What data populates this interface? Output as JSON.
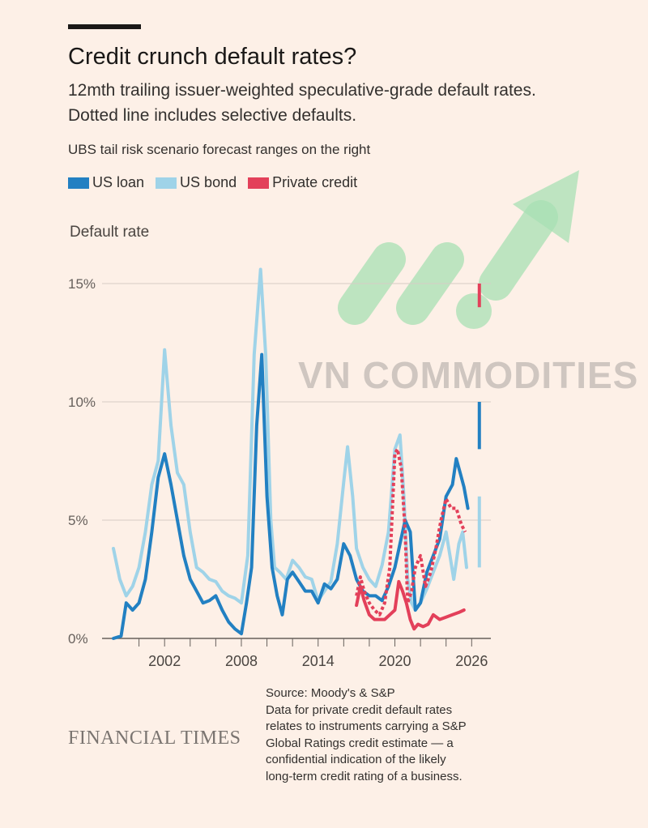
{
  "header": {
    "title": "Credit crunch default rates?",
    "subtitle": "12mth trailing issuer-weighted speculative-grade default rates. Dotted line includes selective defaults.",
    "note": "UBS tail risk scenario forecast ranges on the right"
  },
  "legend": [
    {
      "label": "US loan",
      "color": "#2280c2"
    },
    {
      "label": "US bond",
      "color": "#9fd3e8"
    },
    {
      "label": "Private credit",
      "color": "#e3405a"
    }
  ],
  "watermark": {
    "text": "VN COMMODITIES",
    "arrow_color": "#a8e0b4"
  },
  "footer": {
    "brand": "FINANCIAL TIMES",
    "source_lines": [
      "Source: Moody's & S&P",
      "Data for private credit default rates",
      "relates to instruments carrying a S&P",
      "Global Ratings credit estimate — a",
      "confidential indication of the likely",
      "long-term credit rating of a business."
    ]
  },
  "chart_data": {
    "type": "line",
    "title": "Credit crunch default rates?",
    "ylabel": "Default rate",
    "xlim": [
      1998.0,
      2027.5
    ],
    "ylim": [
      0,
      15
    ],
    "x_ticks": [
      2002,
      2008,
      2014,
      2020,
      2026
    ],
    "y_ticks": [
      0,
      5,
      10,
      15
    ],
    "y_tick_labels": [
      "0%",
      "5%",
      "10%",
      "15%"
    ],
    "grid": "horizontal",
    "series": [
      {
        "name": "US bond",
        "color": "#9fd3e8",
        "x": [
          1998.0,
          1998.5,
          1999.0,
          1999.5,
          2000.0,
          2000.5,
          2001.0,
          2001.5,
          2002.0,
          2002.5,
          2003.0,
          2003.5,
          2004.0,
          2004.5,
          2005.0,
          2005.5,
          2006.0,
          2006.5,
          2007.0,
          2007.5,
          2008.0,
          2008.5,
          2009.0,
          2009.5,
          2009.9,
          2010.3,
          2010.6,
          2011.0,
          2011.5,
          2012.0,
          2012.5,
          2013.0,
          2013.5,
          2014.0,
          2014.5,
          2015.0,
          2015.5,
          2016.0,
          2016.3,
          2016.7,
          2017.0,
          2017.5,
          2018.0,
          2018.5,
          2019.0,
          2019.5,
          2020.0,
          2020.4,
          2020.7,
          2021.0,
          2021.3,
          2021.6,
          2022.0,
          2022.5,
          2023.0,
          2023.5,
          2024.0,
          2024.3,
          2024.6,
          2025.0,
          2025.3,
          2025.6
        ],
        "values": [
          3.8,
          2.5,
          1.8,
          2.2,
          3.0,
          4.5,
          6.5,
          7.5,
          12.2,
          9.0,
          7.0,
          6.5,
          4.5,
          3.0,
          2.8,
          2.5,
          2.4,
          2.0,
          1.8,
          1.7,
          1.5,
          3.5,
          12.0,
          15.6,
          12.0,
          5.0,
          3.0,
          2.8,
          2.5,
          3.3,
          3.0,
          2.6,
          2.5,
          1.6,
          2.0,
          2.4,
          4.0,
          6.6,
          8.1,
          6.0,
          3.8,
          3.0,
          2.5,
          2.2,
          3.1,
          4.5,
          8.0,
          8.6,
          6.0,
          2.5,
          1.5,
          1.2,
          1.5,
          2.1,
          2.8,
          3.5,
          4.5,
          3.5,
          2.5,
          4.0,
          4.5,
          3.0
        ]
      },
      {
        "name": "US loan",
        "color": "#2280c2",
        "x": [
          1998.0,
          1998.6,
          1999.0,
          1999.5,
          2000.0,
          2000.5,
          2001.0,
          2001.5,
          2002.0,
          2002.5,
          2003.0,
          2003.5,
          2004.0,
          2004.5,
          2005.0,
          2005.5,
          2006.0,
          2006.5,
          2007.0,
          2007.5,
          2008.0,
          2008.4,
          2008.8,
          2009.2,
          2009.6,
          2010.0,
          2010.4,
          2010.8,
          2011.2,
          2011.6,
          2012.0,
          2012.5,
          2013.0,
          2013.5,
          2014.0,
          2014.5,
          2015.0,
          2015.5,
          2016.0,
          2016.5,
          2017.0,
          2017.5,
          2018.0,
          2018.5,
          2019.0,
          2019.5,
          2020.0,
          2020.4,
          2020.8,
          2021.2,
          2021.6,
          2022.0,
          2022.5,
          2023.0,
          2023.5,
          2024.0,
          2024.5,
          2024.8,
          2025.1,
          2025.4,
          2025.7
        ],
        "values": [
          0.0,
          0.1,
          1.5,
          1.2,
          1.5,
          2.5,
          4.5,
          6.8,
          7.8,
          6.5,
          5.0,
          3.5,
          2.5,
          2.0,
          1.5,
          1.6,
          1.8,
          1.2,
          0.7,
          0.4,
          0.2,
          1.5,
          3.0,
          9.0,
          12.0,
          6.0,
          3.0,
          1.8,
          1.0,
          2.5,
          2.8,
          2.4,
          2.0,
          2.0,
          1.5,
          2.3,
          2.1,
          2.5,
          4.0,
          3.5,
          2.5,
          2.0,
          1.8,
          1.8,
          1.6,
          2.2,
          3.0,
          4.0,
          5.0,
          4.5,
          1.2,
          1.5,
          2.8,
          3.5,
          4.2,
          6.0,
          6.5,
          7.6,
          7.0,
          6.4,
          5.5
        ]
      },
      {
        "name": "Private credit",
        "color": "#e3405a",
        "dashed": false,
        "x": [
          2017.0,
          2017.3,
          2017.6,
          2018.0,
          2018.4,
          2018.8,
          2019.2,
          2019.6,
          2020.0,
          2020.3,
          2020.6,
          2020.9,
          2021.2,
          2021.5,
          2021.8,
          2022.2,
          2022.6,
          2023.0,
          2023.5,
          2024.0,
          2024.5,
          2025.0,
          2025.4
        ],
        "values": [
          1.4,
          2.2,
          1.6,
          1.0,
          0.8,
          0.8,
          0.8,
          1.0,
          1.2,
          2.4,
          2.0,
          1.5,
          0.8,
          0.4,
          0.6,
          0.5,
          0.6,
          1.0,
          0.8,
          0.9,
          1.0,
          1.1,
          1.2
        ]
      },
      {
        "name": "",
        "color": "#e3405a",
        "dashed": true,
        "x": [
          2017.0,
          2017.3,
          2017.6,
          2018.0,
          2018.4,
          2018.8,
          2019.2,
          2019.6,
          2020.0,
          2020.2,
          2020.5,
          2020.8,
          2021.0,
          2021.3,
          2021.6,
          2022.0,
          2022.4,
          2022.8,
          2023.2,
          2023.6,
          2024.0,
          2024.4,
          2024.8,
          2025.2,
          2025.5
        ],
        "values": [
          1.8,
          2.6,
          2.0,
          1.5,
          1.2,
          1.0,
          1.5,
          3.0,
          7.8,
          8.0,
          7.2,
          4.5,
          1.5,
          2.0,
          3.0,
          3.5,
          2.2,
          2.8,
          3.8,
          5.0,
          5.9,
          5.5,
          5.5,
          4.8,
          4.5
        ]
      }
    ],
    "forecast_ranges": [
      {
        "name": "US bond",
        "color": "#9fd3e8",
        "x": 2026.6,
        "low": 3.0,
        "high": 6.0
      },
      {
        "name": "US loan",
        "color": "#2280c2",
        "x": 2026.6,
        "low": 8.0,
        "high": 10.0
      },
      {
        "name": "Private credit",
        "color": "#e3405a",
        "x": 2026.6,
        "low": 14.0,
        "high": 15.0
      }
    ]
  }
}
